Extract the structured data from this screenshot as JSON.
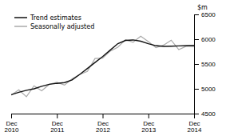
{
  "chart_data": {
    "type": "line",
    "y_label": "$m",
    "categories": [
      "Dec\n2010",
      null,
      null,
      null,
      null,
      null,
      "Dec\n2011",
      null,
      null,
      null,
      null,
      null,
      "Dec\n2012",
      null,
      null,
      null,
      null,
      null,
      "Dec\n2013",
      null,
      null,
      null,
      null,
      null,
      "Dec\n2014"
    ],
    "series": [
      {
        "name": "Trend estimates",
        "color": "#111111",
        "values": [
          4880,
          4930,
          4970,
          5000,
          5050,
          5090,
          5110,
          5125,
          5180,
          5290,
          5410,
          5530,
          5650,
          5780,
          5910,
          5975,
          5985,
          5960,
          5910,
          5870,
          5855,
          5860,
          5865,
          5870,
          5875
        ]
      },
      {
        "name": "Seasonally adjusted",
        "color": "#aaaaaa",
        "values": [
          4870,
          4980,
          4840,
          5060,
          4960,
          5090,
          5130,
          5075,
          5200,
          5290,
          5350,
          5610,
          5620,
          5760,
          5840,
          5990,
          5940,
          6060,
          5950,
          5830,
          5880,
          5980,
          5790,
          5860,
          5850
        ]
      }
    ],
    "ylim": [
      4500,
      6500
    ],
    "yticks": [
      4500,
      5000,
      5500,
      6000,
      6500
    ],
    "grid": false,
    "legend": "top-left"
  }
}
